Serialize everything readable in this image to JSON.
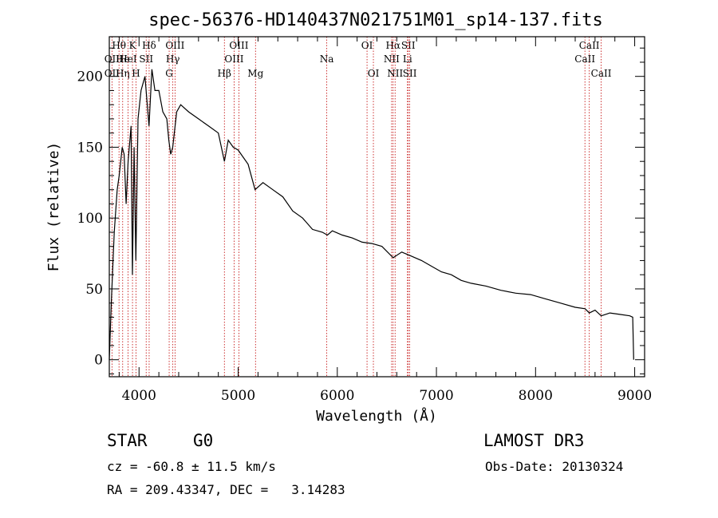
{
  "chart_data": {
    "type": "line",
    "title": "spec-56376-HD140437N021751M01_sp14-137.fits",
    "xlabel": "Wavelength (Å)",
    "ylabel": "Flux (relative)",
    "xlim": [
      3700,
      9100
    ],
    "ylim": [
      -12,
      228
    ],
    "xticks": [
      4000,
      5000,
      6000,
      7000,
      8000,
      9000
    ],
    "yticks": [
      0,
      50,
      100,
      150,
      200
    ],
    "series": [
      {
        "name": "spectrum",
        "x": [
          3700,
          3720,
          3750,
          3780,
          3800,
          3830,
          3850,
          3870,
          3890,
          3920,
          3933,
          3950,
          3968,
          3990,
          4020,
          4060,
          4101,
          4130,
          4160,
          4200,
          4240,
          4280,
          4300,
          4320,
          4340,
          4380,
          4420,
          4500,
          4600,
          4700,
          4800,
          4861,
          4900,
          4950,
          5000,
          5100,
          5170,
          5250,
          5350,
          5450,
          5550,
          5650,
          5750,
          5850,
          5900,
          5950,
          6050,
          6150,
          6250,
          6350,
          6450,
          6563,
          6650,
          6750,
          6850,
          6950,
          7050,
          7150,
          7250,
          7350,
          7500,
          7650,
          7800,
          7950,
          8100,
          8250,
          8400,
          8500,
          8542,
          8600,
          8662,
          8750,
          8850,
          8950,
          8980,
          8990
        ],
        "y": [
          0,
          40,
          90,
          120,
          130,
          150,
          145,
          110,
          140,
          165,
          60,
          150,
          70,
          170,
          190,
          200,
          165,
          205,
          190,
          190,
          175,
          170,
          155,
          145,
          150,
          175,
          180,
          175,
          170,
          165,
          160,
          140,
          155,
          150,
          148,
          138,
          120,
          125,
          120,
          115,
          105,
          100,
          92,
          90,
          88,
          91,
          88,
          86,
          83,
          82,
          80,
          72,
          76,
          73,
          70,
          66,
          62,
          60,
          56,
          54,
          52,
          49,
          47,
          46,
          43,
          40,
          37,
          36,
          33,
          35,
          31,
          33,
          32,
          31,
          30,
          0
        ]
      }
    ],
    "spectral_lines": [
      {
        "label": "Hθ",
        "wavelength": 3798,
        "row": 0
      },
      {
        "label": "OII",
        "wavelength": 3727,
        "row": 1
      },
      {
        "label": "OII",
        "wavelength": 3727,
        "row": 2
      },
      {
        "label": "He",
        "wavelength": 3835,
        "row": 1
      },
      {
        "label": "Hη",
        "wavelength": 3835,
        "row": 2
      },
      {
        "label": "K",
        "wavelength": 3934,
        "row": 0
      },
      {
        "label": "HeI",
        "wavelength": 3889,
        "row": 1
      },
      {
        "label": "H",
        "wavelength": 3969,
        "row": 2
      },
      {
        "label": "SII",
        "wavelength": 4072,
        "row": 1
      },
      {
        "label": "Hδ",
        "wavelength": 4102,
        "row": 0
      },
      {
        "label": "OIII",
        "wavelength": 4363,
        "row": 0
      },
      {
        "label": "Hγ",
        "wavelength": 4341,
        "row": 1
      },
      {
        "label": "G",
        "wavelength": 4304,
        "row": 2
      },
      {
        "label": "Hβ",
        "wavelength": 4861,
        "row": 2
      },
      {
        "label": "OIII",
        "wavelength": 4959,
        "row": 1
      },
      {
        "label": "OIII",
        "wavelength": 5007,
        "row": 0
      },
      {
        "label": "Mg",
        "wavelength": 5175,
        "row": 2
      },
      {
        "label": "Na",
        "wavelength": 5894,
        "row": 1
      },
      {
        "label": "OI",
        "wavelength": 6300,
        "row": 0
      },
      {
        "label": "OI",
        "wavelength": 6364,
        "row": 2
      },
      {
        "label": "Hα",
        "wavelength": 6563,
        "row": 0
      },
      {
        "label": "NII",
        "wavelength": 6548,
        "row": 1
      },
      {
        "label": "NII",
        "wavelength": 6583,
        "row": 2
      },
      {
        "label": "SII",
        "wavelength": 6716,
        "row": 0
      },
      {
        "label": "Li",
        "wavelength": 6708,
        "row": 1
      },
      {
        "label": "SII",
        "wavelength": 6731,
        "row": 2
      },
      {
        "label": "CaII",
        "wavelength": 8542,
        "row": 0
      },
      {
        "label": "CaII",
        "wavelength": 8498,
        "row": 1
      },
      {
        "label": "CaII",
        "wavelength": 8662,
        "row": 2
      }
    ]
  },
  "info": {
    "object_type": "STAR",
    "subclass": "G0",
    "survey": "LAMOST DR3",
    "cz": "cz = -60.8 ± 11.5 km/s",
    "obs_date": "Obs-Date: 20130324",
    "coords": "RA = 209.43347, DEC =   3.14283"
  }
}
